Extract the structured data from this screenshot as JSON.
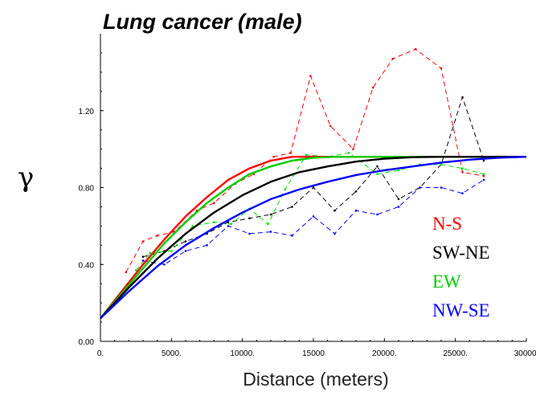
{
  "chart_data": {
    "type": "line",
    "title": "Lung cancer (male)",
    "xlabel": "Distance (meters)",
    "ylabel": "γ",
    "xlim": [
      0,
      30000
    ],
    "ylim": [
      0,
      1.6
    ],
    "x_ticks": [
      0,
      5000,
      10000,
      15000,
      20000,
      25000,
      30000
    ],
    "x_tick_labels": [
      "0.",
      "5000.",
      "10000.",
      "15000",
      "20000.",
      "25000.",
      "30000."
    ],
    "y_ticks": [
      0,
      0.4,
      0.8,
      1.2
    ],
    "y_tick_labels": [
      "0.00",
      "0.40",
      "0.80",
      "1.20"
    ],
    "grid": false,
    "legend_position": "bottom-right",
    "series": [
      {
        "name": "N-S",
        "color": "#ff0000",
        "style": "dashed",
        "x": [
          1800,
          3000,
          4000,
          5200,
          6800,
          8000,
          9500,
          10800,
          12200,
          13400,
          14800,
          16200,
          17800,
          19200,
          20600,
          22200,
          24000,
          25500,
          27000
        ],
        "y": [
          0.36,
          0.52,
          0.55,
          0.57,
          0.68,
          0.72,
          0.82,
          0.87,
          0.96,
          0.98,
          1.38,
          1.12,
          1.0,
          1.32,
          1.47,
          1.52,
          1.42,
          0.88,
          0.86
        ]
      },
      {
        "name": "SW-NE",
        "color": "#000000",
        "style": "dashed",
        "x": [
          3000,
          4500,
          6000,
          7500,
          9000,
          10500,
          12000,
          13500,
          15000,
          16500,
          18000,
          19500,
          21000,
          22500,
          24000,
          25500,
          27000
        ],
        "y": [
          0.44,
          0.47,
          0.52,
          0.56,
          0.62,
          0.64,
          0.66,
          0.7,
          0.8,
          0.68,
          0.78,
          0.91,
          0.74,
          0.8,
          0.92,
          1.27,
          0.94
        ]
      },
      {
        "name": "EW",
        "color": "#00dd00",
        "style": "dashed",
        "x": [
          2500,
          3500,
          5000,
          6500,
          8000,
          9200,
          10500,
          11800,
          13000,
          14500,
          16000,
          17500,
          19500,
          21000,
          22500,
          24000,
          25500,
          27000
        ],
        "y": [
          0.37,
          0.46,
          0.47,
          0.6,
          0.62,
          0.61,
          0.69,
          0.61,
          0.79,
          0.97,
          0.96,
          0.98,
          0.87,
          0.89,
          0.92,
          0.92,
          0.9,
          0.87
        ]
      },
      {
        "name": "NW-SE",
        "color": "#0000ff",
        "style": "dashed",
        "x": [
          3000,
          4500,
          6000,
          7500,
          9000,
          10500,
          12000,
          13500,
          15000,
          16500,
          18000,
          19500,
          21000,
          22500,
          24000,
          25500,
          27000
        ],
        "y": [
          0.42,
          0.4,
          0.47,
          0.5,
          0.6,
          0.56,
          0.57,
          0.55,
          0.65,
          0.56,
          0.68,
          0.66,
          0.7,
          0.8,
          0.8,
          0.77,
          0.84
        ]
      },
      {
        "name": "N-S",
        "color": "#ff0000",
        "style": "solid",
        "x": [
          0,
          1500,
          3000,
          4500,
          6000,
          7500,
          9000,
          10500,
          12000,
          13500,
          15000,
          30000
        ],
        "y": [
          0.12,
          0.26,
          0.4,
          0.53,
          0.65,
          0.75,
          0.84,
          0.9,
          0.94,
          0.96,
          0.96,
          0.96
        ]
      },
      {
        "name": "EW",
        "color": "#00cc00",
        "style": "solid",
        "x": [
          0,
          1500,
          3000,
          4500,
          6000,
          7500,
          9000,
          10500,
          12000,
          13500,
          15000,
          16500,
          18000,
          30000
        ],
        "y": [
          0.12,
          0.25,
          0.38,
          0.51,
          0.62,
          0.72,
          0.8,
          0.87,
          0.91,
          0.94,
          0.955,
          0.96,
          0.96,
          0.96
        ]
      },
      {
        "name": "SW-NE",
        "color": "#000000",
        "style": "solid",
        "x": [
          0,
          2000,
          4000,
          6000,
          8000,
          10000,
          12000,
          14000,
          16000,
          18000,
          20000,
          22000,
          24000,
          26000,
          30000
        ],
        "y": [
          0.12,
          0.28,
          0.43,
          0.56,
          0.67,
          0.76,
          0.83,
          0.88,
          0.91,
          0.935,
          0.95,
          0.958,
          0.96,
          0.96,
          0.96
        ]
      },
      {
        "name": "NW-SE",
        "color": "#0000ff",
        "style": "solid",
        "x": [
          0,
          2000,
          4000,
          6000,
          8000,
          10000,
          12000,
          14000,
          16000,
          18000,
          20000,
          22000,
          24000,
          26000,
          28000,
          30000
        ],
        "y": [
          0.12,
          0.26,
          0.39,
          0.5,
          0.59,
          0.67,
          0.74,
          0.79,
          0.83,
          0.865,
          0.89,
          0.91,
          0.93,
          0.945,
          0.955,
          0.96
        ]
      }
    ],
    "legend": [
      {
        "label": "N-S",
        "color": "#ff0000"
      },
      {
        "label": "SW-NE",
        "color": "#000000"
      },
      {
        "label": "EW",
        "color": "#00cc00"
      },
      {
        "label": "NW-SE",
        "color": "#0000ff"
      }
    ]
  }
}
